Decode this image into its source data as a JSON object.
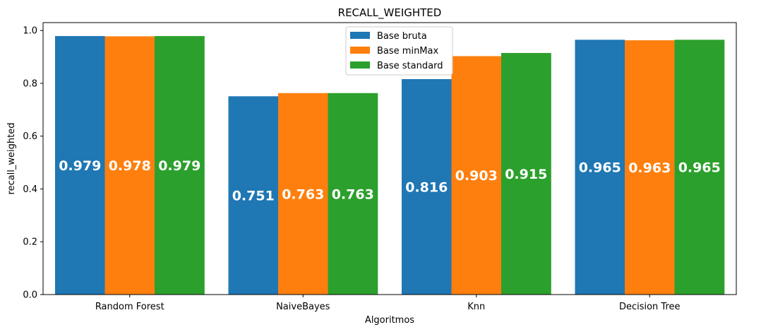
{
  "chart_data": {
    "type": "bar",
    "title": "RECALL_WEIGHTED",
    "xlabel": "Algoritmos",
    "ylabel": "recall_weighted",
    "categories": [
      "Random Forest",
      "NaiveBayes",
      "Knn",
      "Decision Tree"
    ],
    "series": [
      {
        "name": "Base bruta",
        "color": "#1f77b4",
        "values": [
          0.979,
          0.751,
          0.816,
          0.965
        ],
        "labels": [
          "0.979",
          "0.751",
          "0.816",
          "0.965"
        ]
      },
      {
        "name": "Base minMax",
        "color": "#ff7f0e",
        "values": [
          0.978,
          0.763,
          0.903,
          0.963
        ],
        "labels": [
          "0.978",
          "0.763",
          "0.903",
          "0.963"
        ]
      },
      {
        "name": "Base standard",
        "color": "#2ca02c",
        "values": [
          0.979,
          0.763,
          0.915,
          0.965
        ],
        "labels": [
          "0.979",
          "0.763",
          "0.915",
          "0.965"
        ]
      }
    ],
    "ylim": [
      0,
      1.03
    ],
    "yticks": [
      0.0,
      0.2,
      0.4,
      0.6,
      0.8,
      1.0
    ],
    "ytick_labels": [
      "0.0",
      "0.2",
      "0.4",
      "0.6",
      "0.8",
      "1.0"
    ],
    "grid": false,
    "legend_position": "top-center"
  }
}
